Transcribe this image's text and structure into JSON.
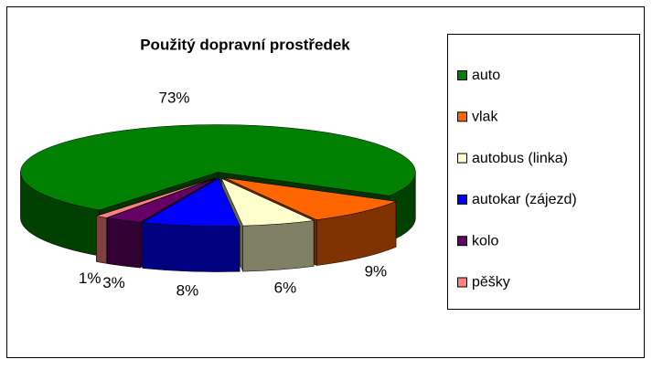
{
  "chart_data": {
    "type": "pie3d",
    "title": "Použitý dopravní prostředek",
    "categories": [
      "auto",
      "vlak",
      "autobus (linka)",
      "autokar (zájezd)",
      "kolo",
      "pěšky"
    ],
    "values": [
      73,
      9,
      6,
      8,
      3,
      1
    ],
    "value_labels": [
      "73%",
      "9%",
      "6%",
      "8%",
      "3%",
      "1%"
    ],
    "colors": [
      "#008000",
      "#ff6600",
      "#ffffcc",
      "#0000ff",
      "#660066",
      "#ff8080"
    ],
    "legend": "right"
  }
}
